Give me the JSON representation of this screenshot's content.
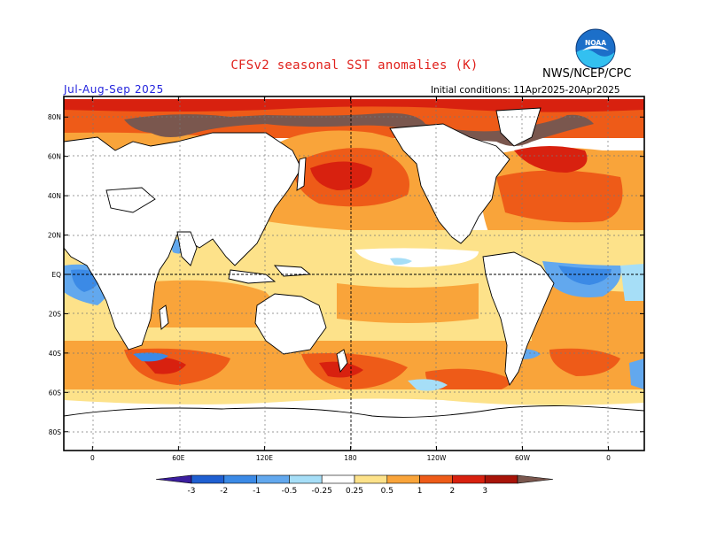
{
  "header": {
    "title": "CFSv2 seasonal SST anomalies (K)",
    "org": "NWS/NCEP/CPC",
    "season": "Jul-Aug-Sep 2025",
    "initial_conditions": "Initial conditions: 11Apr2025-20Apr2025",
    "logo_text": "NOAA"
  },
  "map": {
    "lat_labels": [
      "80N",
      "60N",
      "40N",
      "20N",
      "EQ",
      "20S",
      "40S",
      "60S",
      "80S"
    ],
    "lat_values": [
      80,
      60,
      40,
      20,
      0,
      -20,
      -40,
      -60,
      -80
    ],
    "lon_labels": [
      "0",
      "60E",
      "120E",
      "180",
      "120W",
      "60W",
      "0"
    ],
    "lon_values": [
      0,
      60,
      120,
      180,
      240,
      300,
      360
    ]
  },
  "legend": {
    "levels": [
      "-3",
      "-2",
      "-1",
      "-0.5",
      "-0.25",
      "0.25",
      "0.5",
      "1",
      "2",
      "3"
    ],
    "colors": [
      "#3b1e9e",
      "#1f5fd1",
      "#3b8ae6",
      "#62a8ee",
      "#a6def7",
      "#ffffff",
      "#fde28a",
      "#f9a43a",
      "#ee5b18",
      "#d8210f",
      "#a81409",
      "#7a574e"
    ]
  },
  "colors": {
    "title": "#e0201b",
    "season": "#2222dd",
    "noaa_blue": "#1c6fc9",
    "noaa_cyan": "#33c0f0"
  }
}
